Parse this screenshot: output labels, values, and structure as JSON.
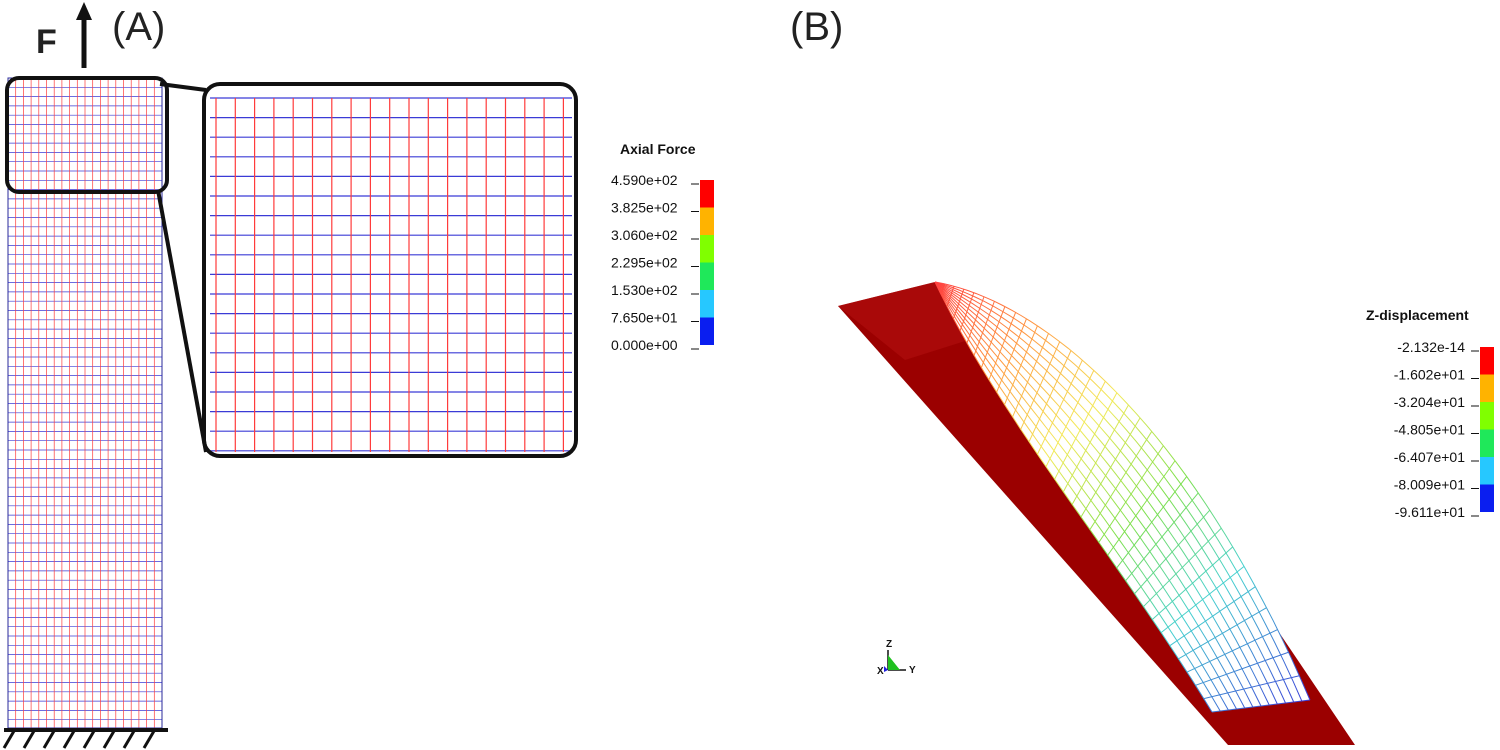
{
  "panel_a": {
    "label": "(A)",
    "force_label": "F",
    "legend": {
      "title": "Axial Force",
      "ticks": [
        "4.590e+02",
        "3.825e+02",
        "3.060e+02",
        "2.295e+02",
        "1.530e+02",
        "7.650e+01",
        "0.000e+00"
      ],
      "colors": [
        "#ff0000",
        "#ffb300",
        "#80ff00",
        "#1fe85a",
        "#26c8ff",
        "#0a1ef0"
      ]
    },
    "mesh_colors": {
      "horizontal": "#3b3bd6",
      "vertical": "#ff3b3b"
    }
  },
  "panel_b": {
    "label": "(B)",
    "legend": {
      "title": "Z-displacement",
      "ticks": [
        "-2.132e-14",
        "-1.602e+01",
        "-3.204e+01",
        "-4.805e+01",
        "-6.407e+01",
        "-8.009e+01",
        "-9.611e+01"
      ],
      "colors": [
        "#ff0000",
        "#ffb300",
        "#80ff00",
        "#1fe85a",
        "#26c8ff",
        "#0a1ef0"
      ]
    },
    "solid_color": "#9b0000",
    "triad": {
      "z": "Z",
      "y": "Y",
      "x": "X"
    }
  }
}
